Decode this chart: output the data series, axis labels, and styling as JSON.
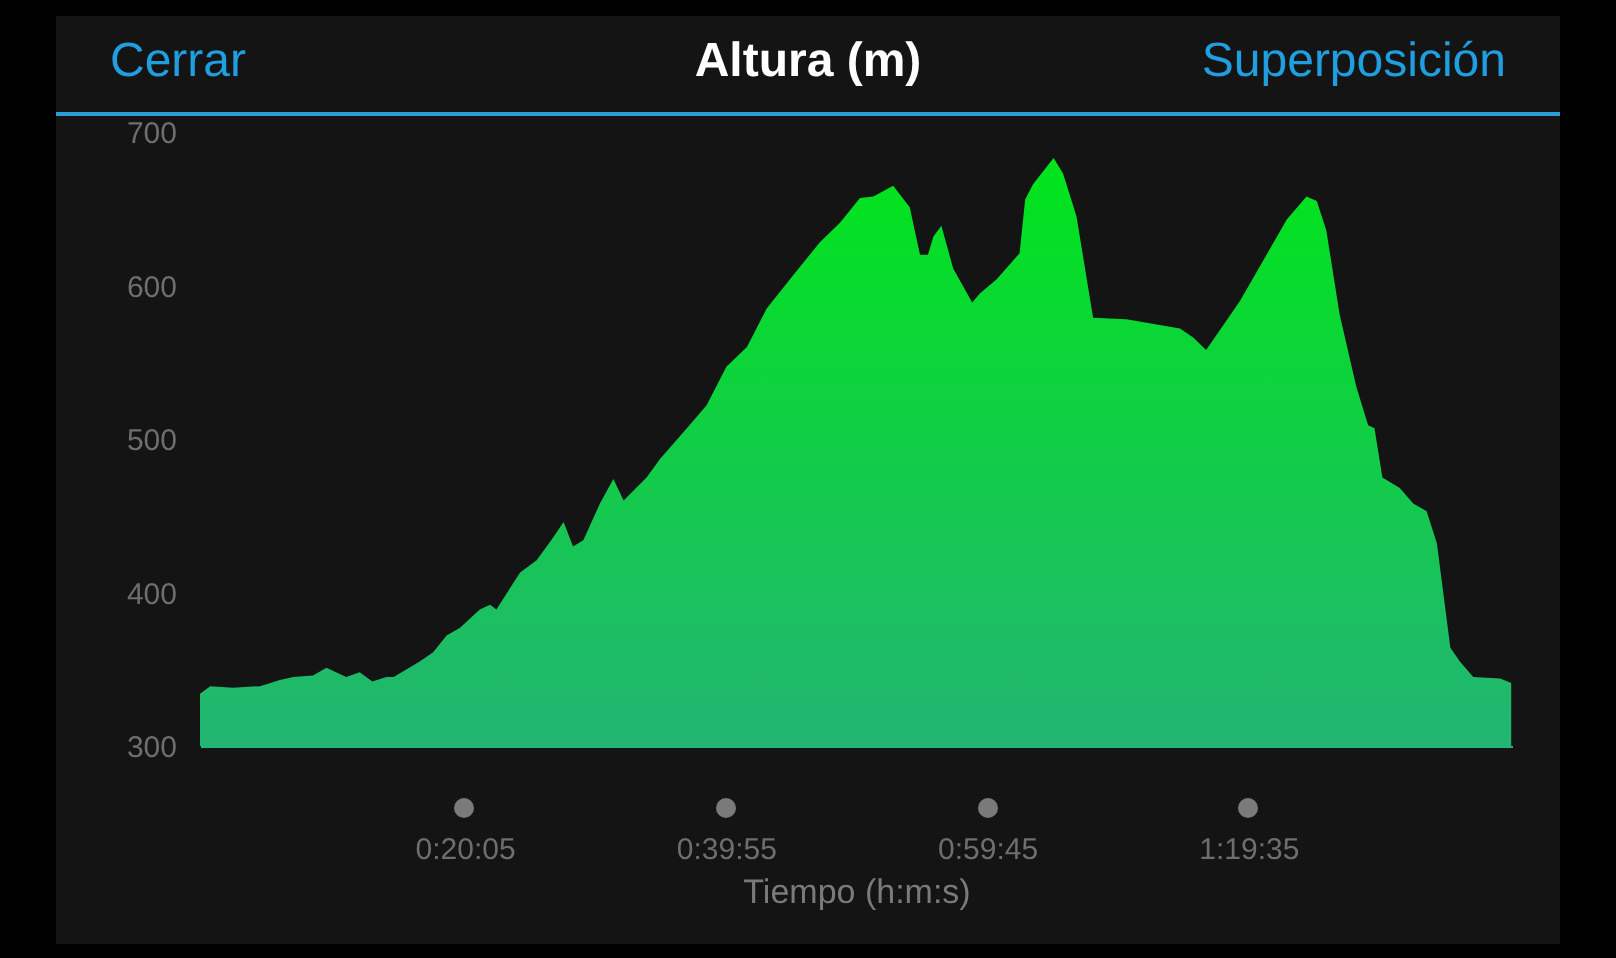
{
  "chart_data": {
    "type": "area",
    "title": "Altura (m)",
    "xlabel": "Tiempo (h:m:s)",
    "annotations": [
      "Cerrar",
      "Superposición"
    ],
    "x": [
      0,
      0.013,
      0.042,
      0.076,
      0.101,
      0.118,
      0.143,
      0.16,
      0.185,
      0.202,
      0.218,
      0.236,
      0.245,
      0.278,
      0.295,
      0.312,
      0.329,
      0.354,
      0.367,
      0.375,
      0.405,
      0.426,
      0.447,
      0.46,
      0.472,
      0.485,
      0.506,
      0.523,
      0.536,
      0.565,
      0.582,
      0.616,
      0.641,
      0.666,
      0.692,
      0.717,
      0.751,
      0.784,
      0.81,
      0.835,
      0.852,
      0.877,
      0.898,
      0.911,
      0.921,
      0.928,
      0.938,
      0.953,
      0.977,
      0.987,
      1.008,
      1.037,
      1.044,
      1.054,
      1.08,
      1.092,
      1.109,
      1.13,
      1.172,
      1.24,
      1.257,
      1.273,
      1.316,
      1.375,
      1.4,
      1.413,
      1.425,
      1.442,
      1.463,
      1.478,
      1.486,
      1.496,
      1.518,
      1.535,
      1.552,
      1.565,
      1.582,
      1.594,
      1.611,
      1.645,
      1.659
    ],
    "series": [
      {
        "color": "#00e51a",
        "values": [
          334,
          339,
          338,
          339,
          343,
          345,
          346,
          351,
          345,
          348,
          342,
          345,
          345,
          355,
          361,
          372,
          377,
          389,
          392,
          389,
          413,
          421,
          436,
          446,
          430,
          434,
          458,
          474,
          460,
          475,
          487,
          507,
          522,
          547,
          560,
          585,
          607,
          628,
          641,
          657,
          658,
          665,
          651,
          620,
          620,
          632,
          639,
          611,
          589,
          595,
          604,
          621,
          656,
          666,
          683,
          673,
          645,
          579,
          578,
          572,
          566,
          558,
          590,
          643,
          658,
          655,
          636,
          581,
          534,
          509,
          507,
          475,
          468,
          458,
          453,
          432,
          364,
          355,
          345,
          344,
          341
        ]
      }
    ],
    "xlim": [
      0,
      1.66
    ],
    "xticks": [
      {
        "value": 0.3347,
        "label": "0:20:05"
      },
      {
        "value": 0.6653,
        "label": "0:39:55"
      },
      {
        "value": 0.9958,
        "label": "0:59:45"
      },
      {
        "value": 1.3264,
        "label": "1:19:35"
      }
    ],
    "ylim": [
      300,
      700
    ],
    "yticks": [
      300,
      400,
      500,
      600,
      700
    ]
  }
}
